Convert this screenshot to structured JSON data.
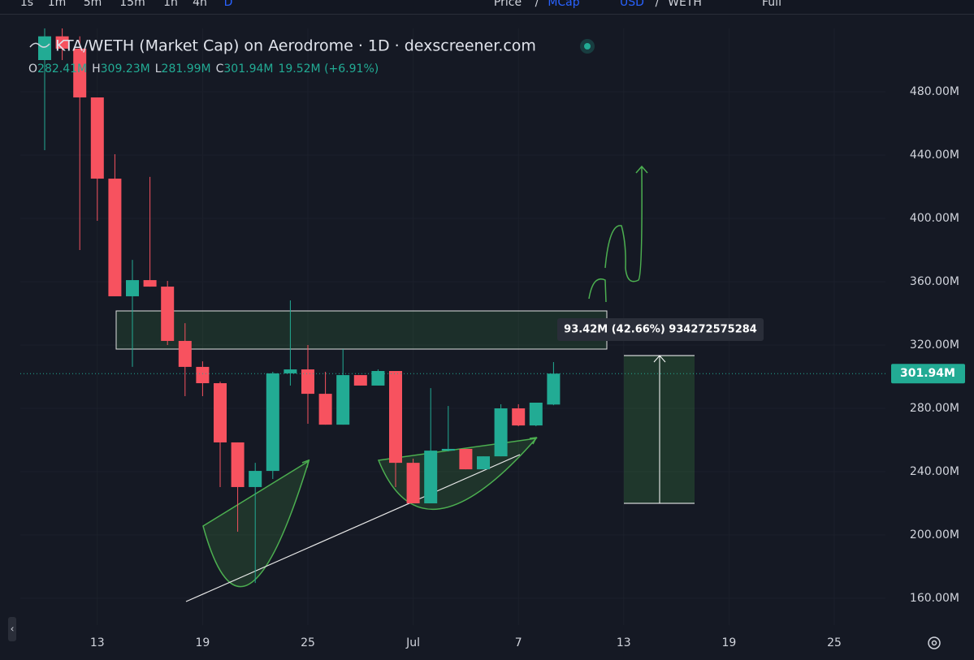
{
  "toolbar": {
    "intervals": [
      "1s",
      "1m",
      "5m",
      "15m",
      "1h",
      "4h",
      "D"
    ],
    "price_mode": [
      "Price",
      "/",
      "MCap"
    ],
    "currency": [
      "USD",
      "/",
      "WETH"
    ],
    "full": "Full"
  },
  "chart_data": {
    "type": "candlestick",
    "title": "KTA/WETH (Market Cap) on Aerodrome · 1D · dexscreener.com",
    "ohlc_legend": [
      {
        "key": "O",
        "text": "282.41M"
      },
      {
        "key": "H",
        "text": "309.23M"
      },
      {
        "key": "L",
        "text": "281.99M"
      },
      {
        "key": "C",
        "text": "301.94M"
      }
    ],
    "change": "19.52M (+6.91%)",
    "categories": [
      null,
      null,
      null,
      "13",
      null,
      null,
      null,
      null,
      null,
      "19",
      null,
      null,
      null,
      null,
      null,
      "25",
      null,
      null,
      null,
      null,
      null,
      "Jul",
      null,
      null,
      null,
      null,
      null,
      "7",
      null,
      null,
      null,
      null,
      null,
      "13",
      null,
      null,
      null,
      null,
      null,
      "19",
      null,
      null,
      null,
      null,
      null,
      "25",
      null,
      null
    ],
    "open": [
      500,
      515,
      507.2,
      476.4,
      425.1,
      350.8,
      361.0,
      356.9,
      322.6,
      306.2,
      295.9,
      258.5,
      230.3,
      240.5,
      302.1,
      304.6,
      289.2,
      269.7,
      301.0,
      294.4,
      303.6,
      245.6,
      220.0,
      253.3,
      254.4,
      241.5,
      249.7,
      280.0,
      269.2,
      282.41,
      null,
      null,
      null,
      null,
      null,
      null,
      null,
      null,
      null,
      null,
      null,
      null,
      null,
      null,
      null,
      null,
      null,
      null
    ],
    "high": [
      520,
      520,
      515,
      476.4,
      440.5,
      373.8,
      426.2,
      360.5,
      333.8,
      309.7,
      296.9,
      258.5,
      245.6,
      303.1,
      348.2,
      320.0,
      303.1,
      317.4,
      301.0,
      304.6,
      303.6,
      248.2,
      292.8,
      281.5,
      254.4,
      249.7,
      282.6,
      282.6,
      283.6,
      309.23,
      null,
      null,
      null,
      null,
      null,
      null,
      null,
      null,
      null,
      null,
      null,
      null,
      null,
      null,
      null,
      null,
      null,
      null
    ],
    "low": [
      443.1,
      500,
      380.0,
      398.5,
      350.8,
      306.2,
      356.9,
      320.0,
      287.7,
      287.7,
      230.3,
      202.1,
      169.7,
      235.4,
      294.4,
      270.3,
      269.7,
      269.7,
      294.4,
      294.4,
      230.3,
      220.0,
      220.0,
      252.8,
      241.5,
      241.5,
      249.7,
      268.7,
      268.7,
      281.99,
      null,
      null,
      null,
      null,
      null,
      null,
      null,
      null,
      null,
      null,
      null,
      null,
      null,
      null,
      null,
      null,
      null,
      null
    ],
    "close": [
      515,
      507.2,
      476.4,
      425.1,
      350.8,
      361.0,
      356.9,
      322.6,
      306.2,
      295.9,
      258.5,
      230.3,
      240.5,
      302.1,
      304.6,
      289.2,
      269.7,
      301.0,
      294.4,
      303.6,
      245.6,
      220.0,
      253.3,
      254.4,
      241.5,
      249.7,
      280.0,
      269.2,
      283.6,
      301.94,
      null,
      null,
      null,
      null,
      null,
      null,
      null,
      null,
      null,
      null,
      null,
      null,
      null,
      null,
      null,
      null,
      null,
      null
    ],
    "up_color": "#22ab94",
    "down_color": "#f7525f",
    "ylim": [
      143.1,
      520
    ],
    "yticks": [
      {
        "value": 160,
        "label": "160.00M"
      },
      {
        "value": 200,
        "label": "200.00M"
      },
      {
        "value": 240,
        "label": "240.00M"
      },
      {
        "value": 280,
        "label": "280.00M"
      },
      {
        "value": 320,
        "label": "320.00M"
      },
      {
        "value": 360,
        "label": "360.00M"
      },
      {
        "value": 400,
        "label": "400.00M"
      },
      {
        "value": 440,
        "label": "440.00M"
      },
      {
        "value": 480,
        "label": "480.00M"
      }
    ],
    "last_price": {
      "value": 301.94,
      "label": "301.94M"
    },
    "measure_label": "93.42M (42.66%) 934272575284",
    "grid": true
  }
}
